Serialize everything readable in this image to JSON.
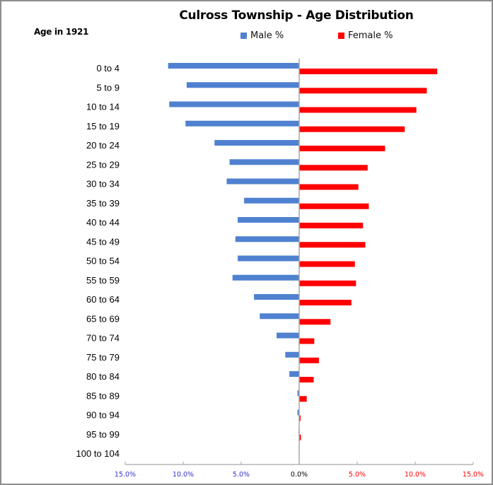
{
  "chart_data": {
    "type": "bar",
    "orientation": "horizontal",
    "subtype": "population-pyramid",
    "title": "Culross Township - Age Distribution",
    "ylabel": "Age in 1921",
    "xlabel": "",
    "categories": [
      "0 to 4",
      "5 to 9",
      "10 to 14",
      "15 to 19",
      "20 to 24",
      "25 to 29",
      "30 to 34",
      "35 to 39",
      "40 to 44",
      "45 to 49",
      "50 to 54",
      "55 to 59",
      "60 to 64",
      "65 to 69",
      "70 to 74",
      "75 to 79",
      "80 to 84",
      "85 to 89",
      "90 to 94",
      "95 to 99",
      "100 to 104"
    ],
    "series": [
      {
        "name": "Male %",
        "color": "#4f81d0",
        "side": "left",
        "values": [
          11.3,
          9.7,
          11.2,
          9.8,
          7.3,
          6.0,
          6.25,
          4.75,
          5.3,
          5.5,
          5.3,
          5.75,
          3.9,
          3.4,
          1.95,
          1.2,
          0.85,
          0.15,
          0.15,
          0.05,
          0.03
        ]
      },
      {
        "name": "Female %",
        "color": "#ff0000",
        "side": "right",
        "values": [
          11.9,
          11.0,
          10.1,
          9.1,
          7.4,
          5.9,
          5.1,
          6.0,
          5.5,
          5.7,
          4.8,
          4.9,
          4.5,
          2.7,
          1.3,
          1.7,
          1.25,
          0.65,
          0.12,
          0.15,
          0.0
        ]
      }
    ],
    "xlim": [
      -15,
      15
    ],
    "xticks": [
      {
        "value": -15,
        "label": "15.0%",
        "color": "#3333cc"
      },
      {
        "value": -10,
        "label": "10.0%",
        "color": "#3333cc"
      },
      {
        "value": -5,
        "label": "5.0%",
        "color": "#3333cc"
      },
      {
        "value": 0,
        "label": "0.0%",
        "color": "#000000"
      },
      {
        "value": 5,
        "label": "5.0%",
        "color": "#ff0000"
      },
      {
        "value": 10,
        "label": "10.0%",
        "color": "#ff0000"
      },
      {
        "value": 15,
        "label": "15.0%",
        "color": "#ff0000"
      }
    ],
    "grid": false,
    "legend": {
      "placement": "top-center",
      "entries": [
        "Male %",
        "Female %"
      ]
    }
  }
}
